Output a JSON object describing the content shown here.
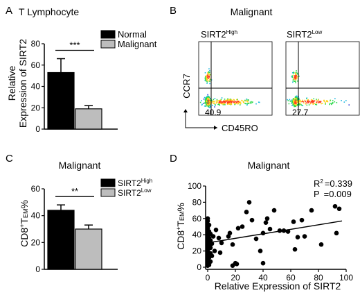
{
  "panel_letters": {
    "a": "A",
    "b": "B",
    "c": "C",
    "d": "D"
  },
  "chart_data": [
    {
      "id": "A",
      "type": "bar",
      "title": "T Lymphocyte",
      "ylabel_line1": "Relative",
      "ylabel_line2": "Expression of SIRT2",
      "ylim": [
        0,
        80
      ],
      "yticks": [
        0,
        20,
        40,
        60,
        80
      ],
      "categories": [
        "Normal",
        "Malignant"
      ],
      "values": [
        53,
        19
      ],
      "errors": [
        13,
        3
      ],
      "colors": [
        "#000000",
        "#bdbdbd"
      ],
      "legend": [
        "Normal",
        "Malignant"
      ],
      "legend_position": "top-right",
      "significance": "***"
    },
    {
      "id": "B",
      "type": "scatter",
      "title": "Malignant",
      "ylabel": "CCR7",
      "xlabel": "CD45RO",
      "plots": [
        {
          "label_main": "SIRT2",
          "label_sup": "High",
          "quadrant_value": "40.9"
        },
        {
          "label_main": "SIRT2",
          "label_sup": "Low",
          "quadrant_value": "27.7"
        }
      ]
    },
    {
      "id": "C",
      "type": "bar",
      "title": "Malignant",
      "ylabel": "CD8",
      "ylabel_sup": "+",
      "ylabel_rest": "T",
      "ylabel_sub": "EM",
      "ylabel_pct": "%",
      "ylim": [
        0,
        60
      ],
      "yticks": [
        0,
        20,
        40,
        60
      ],
      "categories": [
        "SIRT2 High",
        "SIRT2 Low"
      ],
      "values": [
        44,
        30
      ],
      "errors": [
        4,
        3
      ],
      "colors": [
        "#000000",
        "#bdbdbd"
      ],
      "legend": [
        {
          "main": "SIRT2",
          "sup": "High"
        },
        {
          "main": "SIRT2",
          "sup": "Low"
        }
      ],
      "legend_position": "top-right",
      "significance": "**"
    },
    {
      "id": "D",
      "type": "scatter",
      "title": "Malignant",
      "xlabel": "Relative Expression of SIRT2",
      "ylabel": "CD8",
      "ylabel_sup": "+",
      "ylabel_rest": "T",
      "ylabel_sub": "EM",
      "ylabel_pct": "%",
      "xlim": [
        0,
        100
      ],
      "ylim": [
        0,
        100
      ],
      "xticks": [
        0,
        20,
        40,
        60,
        80,
        100
      ],
      "yticks": [
        0,
        20,
        40,
        60,
        80,
        100
      ],
      "r2_label": "R",
      "r2_sup": "2",
      "r2_value": "=0.339",
      "p_label": "P",
      "p_value": "=0.009",
      "fit": {
        "x": [
          0,
          97
        ],
        "y": [
          30,
          57
        ]
      },
      "points": [
        [
          0,
          2
        ],
        [
          0,
          5
        ],
        [
          0,
          8
        ],
        [
          0,
          10
        ],
        [
          0,
          13
        ],
        [
          0,
          15
        ],
        [
          0,
          18
        ],
        [
          0,
          20
        ],
        [
          0,
          22
        ],
        [
          0,
          25
        ],
        [
          0,
          27
        ],
        [
          0,
          30
        ],
        [
          0,
          32
        ],
        [
          0,
          35
        ],
        [
          0,
          38
        ],
        [
          0,
          40
        ],
        [
          0,
          42
        ],
        [
          0,
          45
        ],
        [
          0,
          48
        ],
        [
          0,
          50
        ],
        [
          0,
          53
        ],
        [
          0,
          57
        ],
        [
          0,
          60
        ],
        [
          1,
          3
        ],
        [
          1,
          12
        ],
        [
          1,
          28
        ],
        [
          1,
          36
        ],
        [
          1,
          44
        ],
        [
          1,
          52
        ],
        [
          2,
          7
        ],
        [
          2,
          17
        ],
        [
          2,
          24
        ],
        [
          2,
          33
        ],
        [
          2,
          41
        ],
        [
          3,
          14
        ],
        [
          3,
          29
        ],
        [
          4,
          38
        ],
        [
          5,
          20
        ],
        [
          6,
          46
        ],
        [
          8,
          36
        ],
        [
          9,
          18
        ],
        [
          10,
          30
        ],
        [
          15,
          38
        ],
        [
          16,
          42
        ],
        [
          18,
          2
        ],
        [
          18,
          28
        ],
        [
          20,
          5
        ],
        [
          21,
          4
        ],
        [
          22,
          48
        ],
        [
          25,
          50
        ],
        [
          28,
          68
        ],
        [
          30,
          80
        ],
        [
          32,
          58
        ],
        [
          35,
          35
        ],
        [
          38,
          20
        ],
        [
          40,
          5
        ],
        [
          40,
          42
        ],
        [
          42,
          55
        ],
        [
          43,
          60
        ],
        [
          45,
          47
        ],
        [
          48,
          70
        ],
        [
          52,
          45
        ],
        [
          55,
          45
        ],
        [
          58,
          44
        ],
        [
          62,
          56
        ],
        [
          63,
          22
        ],
        [
          65,
          37
        ],
        [
          68,
          58
        ],
        [
          70,
          38
        ],
        [
          75,
          70
        ],
        [
          82,
          28
        ],
        [
          92,
          75
        ],
        [
          93,
          42
        ],
        [
          95,
          72
        ]
      ]
    }
  ]
}
